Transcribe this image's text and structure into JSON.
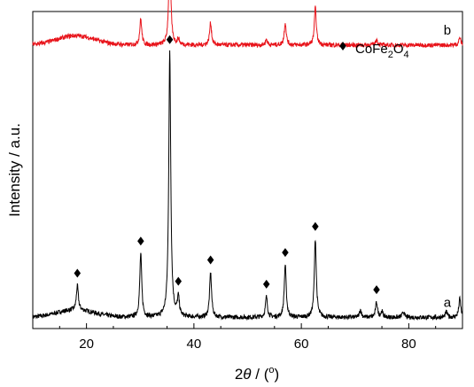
{
  "chart_data": {
    "type": "line",
    "xlabel": "2θ / (°)",
    "ylabel": "Intensity / a.u.",
    "xlim": [
      10,
      90
    ],
    "x_ticks": [
      20,
      40,
      60,
      80
    ],
    "x_tick_labels": [
      "20",
      "40",
      "60",
      "80"
    ],
    "legend": {
      "marker": "diamond",
      "label": "CoFe2O4",
      "position": "top-right"
    },
    "series": [
      {
        "name": "a",
        "color": "#000000",
        "baseline": 0.0,
        "noise": 0.012,
        "hump": {
          "center": 18,
          "width": 5,
          "height": 0.02
        },
        "peaks": [
          {
            "x": 18.3,
            "h": 0.065
          },
          {
            "x": 30.1,
            "h": 0.17
          },
          {
            "x": 35.5,
            "h": 0.71
          },
          {
            "x": 37.1,
            "h": 0.05
          },
          {
            "x": 43.1,
            "h": 0.12
          },
          {
            "x": 53.5,
            "h": 0.055
          },
          {
            "x": 57.0,
            "h": 0.14
          },
          {
            "x": 62.6,
            "h": 0.21
          },
          {
            "x": 71.0,
            "h": 0.02
          },
          {
            "x": 74.0,
            "h": 0.04
          },
          {
            "x": 75.0,
            "h": 0.015
          },
          {
            "x": 79.0,
            "h": 0.015
          },
          {
            "x": 87.0,
            "h": 0.015
          },
          {
            "x": 89.5,
            "h": 0.05
          }
        ]
      },
      {
        "name": "b",
        "color": "#e8141b",
        "baseline": 0.73,
        "noise": 0.012,
        "hump": {
          "center": 18,
          "width": 5,
          "height": 0.025
        },
        "peaks": [
          {
            "x": 30.1,
            "h": 0.07
          },
          {
            "x": 35.5,
            "h": 0.26
          },
          {
            "x": 37.1,
            "h": 0.015
          },
          {
            "x": 43.1,
            "h": 0.06
          },
          {
            "x": 53.5,
            "h": 0.015
          },
          {
            "x": 57.0,
            "h": 0.06
          },
          {
            "x": 62.6,
            "h": 0.1
          },
          {
            "x": 74.0,
            "h": 0.015
          },
          {
            "x": 89.5,
            "h": 0.02
          }
        ]
      }
    ],
    "markers": [
      {
        "x": 18.3,
        "series": "a"
      },
      {
        "x": 30.1,
        "series": "a"
      },
      {
        "x": 35.5,
        "series": "a"
      },
      {
        "x": 37.1,
        "series": "a"
      },
      {
        "x": 43.1,
        "series": "a"
      },
      {
        "x": 53.5,
        "series": "a"
      },
      {
        "x": 57.0,
        "series": "a"
      },
      {
        "x": 62.6,
        "series": "a"
      },
      {
        "x": 74.0,
        "series": "a"
      }
    ],
    "series_labels": [
      {
        "text": "a",
        "series": "a"
      },
      {
        "text": "b",
        "series": "b"
      }
    ]
  }
}
